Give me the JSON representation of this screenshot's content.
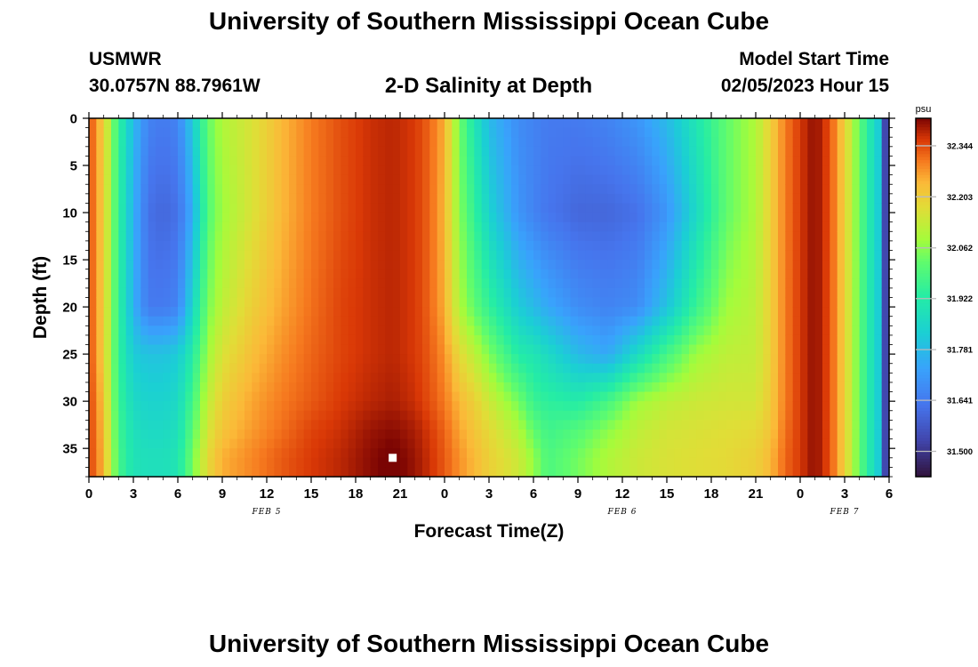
{
  "header": {
    "title": "University of Southern Mississippi Ocean Cube",
    "station": "USMWR",
    "coords": "30.0757N  88.7961W",
    "chart_title": "2-D Salinity at Depth",
    "start_label": "Model Start Time",
    "start_value": "02/05/2023 Hour 15"
  },
  "footer": {
    "title": "University of Southern Mississippi Ocean Cube"
  },
  "chart_data": {
    "type": "heatmap",
    "title": "2-D Salinity at Depth",
    "xlabel": "Forecast Time(Z)",
    "ylabel": "Depth (ft)",
    "x_tick_labels": [
      "0",
      "3",
      "6",
      "9",
      "12",
      "15",
      "18",
      "21",
      "0",
      "3",
      "6",
      "9",
      "12",
      "15",
      "18",
      "21",
      "0",
      "3",
      "6"
    ],
    "x_range_hours": [
      0,
      54
    ],
    "date_labels": [
      {
        "text": "FEB 5",
        "hour": 12
      },
      {
        "text": "FEB 6",
        "hour": 36
      },
      {
        "text": "FEB 7",
        "hour": 51
      }
    ],
    "y_ticks": [
      0,
      5,
      10,
      15,
      20,
      25,
      30,
      35
    ],
    "y_range": [
      0,
      38
    ],
    "y_inverted": true,
    "colorbar": {
      "unit": "psu",
      "ticks": [
        31.5,
        31.641,
        31.781,
        31.922,
        32.062,
        32.203,
        32.344
      ],
      "tick_labels": [
        "31.500",
        "31.641",
        "31.781",
        "31.922",
        "32.062",
        "32.203",
        "32.344"
      ],
      "range": [
        31.43,
        32.42
      ],
      "colormap": "turbo"
    },
    "profiles": {
      "hours": [
        0,
        1,
        2,
        3,
        4,
        5,
        6,
        7,
        8,
        9,
        11,
        13,
        15,
        17,
        19,
        20.5,
        22,
        23,
        24,
        25,
        26,
        27,
        29,
        30,
        31,
        33,
        35,
        37,
        39,
        41,
        43,
        45,
        46,
        47,
        48,
        49,
        50,
        51,
        52,
        53,
        54
      ],
      "depths_ft": [
        0,
        10,
        20,
        25,
        30,
        33,
        36,
        38
      ],
      "salinity_psu": [
        [
          32.35,
          32.35,
          32.35,
          32.35,
          32.36,
          32.36,
          32.36,
          32.36
        ],
        [
          32.2,
          32.2,
          32.2,
          32.2,
          32.22,
          32.23,
          32.24,
          32.24
        ],
        [
          31.95,
          31.95,
          31.95,
          31.95,
          31.96,
          31.97,
          31.98,
          31.98
        ],
        [
          31.78,
          31.76,
          31.76,
          31.82,
          31.86,
          31.88,
          31.89,
          31.89
        ],
        [
          31.66,
          31.62,
          31.64,
          31.8,
          31.84,
          31.86,
          31.88,
          31.88
        ],
        [
          31.64,
          31.6,
          31.64,
          31.8,
          31.84,
          31.86,
          31.88,
          31.88
        ],
        [
          31.66,
          31.62,
          31.66,
          31.82,
          31.86,
          31.88,
          31.9,
          31.9
        ],
        [
          31.82,
          31.75,
          31.85,
          31.92,
          31.98,
          32.01,
          32.04,
          32.04
        ],
        [
          32.02,
          32.0,
          32.04,
          32.08,
          32.12,
          32.15,
          32.18,
          32.18
        ],
        [
          32.1,
          32.08,
          32.12,
          32.16,
          32.2,
          32.22,
          32.25,
          32.25
        ],
        [
          32.16,
          32.16,
          32.2,
          32.23,
          32.26,
          32.27,
          32.29,
          32.29
        ],
        [
          32.24,
          32.24,
          32.26,
          32.28,
          32.3,
          32.31,
          32.33,
          32.33
        ],
        [
          32.3,
          32.3,
          32.31,
          32.32,
          32.33,
          32.35,
          32.36,
          32.36
        ],
        [
          32.34,
          32.34,
          32.35,
          32.35,
          32.36,
          32.37,
          32.38,
          32.38
        ],
        [
          32.37,
          32.37,
          32.37,
          32.37,
          32.38,
          32.4,
          32.41,
          32.41
        ],
        [
          32.38,
          32.38,
          32.38,
          32.38,
          32.39,
          32.41,
          32.43,
          32.43
        ],
        [
          32.36,
          32.36,
          32.36,
          32.36,
          32.37,
          32.39,
          32.4,
          32.4
        ],
        [
          32.32,
          32.32,
          32.32,
          32.33,
          32.34,
          32.36,
          32.37,
          32.37
        ],
        [
          32.25,
          32.24,
          32.25,
          32.28,
          32.3,
          32.32,
          32.33,
          32.33
        ],
        [
          32.04,
          32.06,
          32.1,
          32.18,
          32.24,
          32.26,
          32.28,
          32.28
        ],
        [
          31.9,
          31.95,
          32.02,
          32.12,
          32.2,
          32.22,
          32.24,
          32.24
        ],
        [
          31.78,
          31.84,
          31.95,
          32.05,
          32.14,
          32.18,
          32.2,
          32.2
        ],
        [
          31.68,
          31.7,
          31.82,
          31.92,
          32.04,
          32.1,
          32.14,
          32.14
        ],
        [
          31.66,
          31.66,
          31.78,
          31.9,
          31.96,
          32.02,
          32.07,
          32.07
        ],
        [
          31.64,
          31.63,
          31.74,
          31.86,
          31.94,
          31.97,
          31.99,
          31.99
        ],
        [
          31.64,
          31.6,
          31.68,
          31.78,
          31.92,
          32.0,
          32.04,
          32.04
        ],
        [
          31.66,
          31.6,
          31.66,
          31.74,
          31.98,
          32.06,
          32.1,
          32.1
        ],
        [
          31.7,
          31.62,
          31.68,
          31.86,
          32.08,
          32.12,
          32.14,
          32.14
        ],
        [
          31.78,
          31.7,
          31.8,
          31.98,
          32.12,
          32.15,
          32.16,
          32.16
        ],
        [
          31.9,
          31.86,
          31.96,
          32.08,
          32.14,
          32.16,
          32.17,
          32.17
        ],
        [
          32.02,
          32.02,
          32.08,
          32.12,
          32.15,
          32.17,
          32.18,
          32.18
        ],
        [
          32.1,
          32.1,
          32.12,
          32.13,
          32.15,
          32.18,
          32.2,
          32.2
        ],
        [
          32.2,
          32.2,
          32.2,
          32.2,
          32.21,
          32.22,
          32.24,
          32.24
        ],
        [
          32.3,
          32.3,
          32.3,
          32.3,
          32.3,
          32.31,
          32.32,
          32.32
        ],
        [
          32.36,
          32.36,
          32.36,
          32.36,
          32.36,
          32.36,
          32.36,
          32.36
        ],
        [
          32.41,
          32.41,
          32.41,
          32.41,
          32.41,
          32.41,
          32.41,
          32.41
        ],
        [
          32.34,
          32.34,
          32.34,
          32.34,
          32.34,
          32.34,
          32.34,
          32.34
        ],
        [
          32.2,
          32.2,
          32.2,
          32.2,
          32.2,
          32.2,
          32.2,
          32.2
        ],
        [
          32.02,
          32.02,
          32.02,
          32.02,
          32.02,
          32.02,
          32.02,
          32.02
        ],
        [
          31.86,
          31.86,
          31.86,
          31.86,
          31.86,
          31.86,
          31.86,
          31.86
        ],
        [
          31.72,
          31.72,
          31.72,
          31.72,
          31.72,
          31.72,
          31.72,
          31.72
        ]
      ],
      "fade_end_hours": [
        53.5,
        54
      ],
      "fade_end_psu": [
        31.6,
        31.47
      ]
    },
    "marker": {
      "hour": 20.5,
      "depth_ft": 36,
      "color": "#ffffff"
    }
  }
}
